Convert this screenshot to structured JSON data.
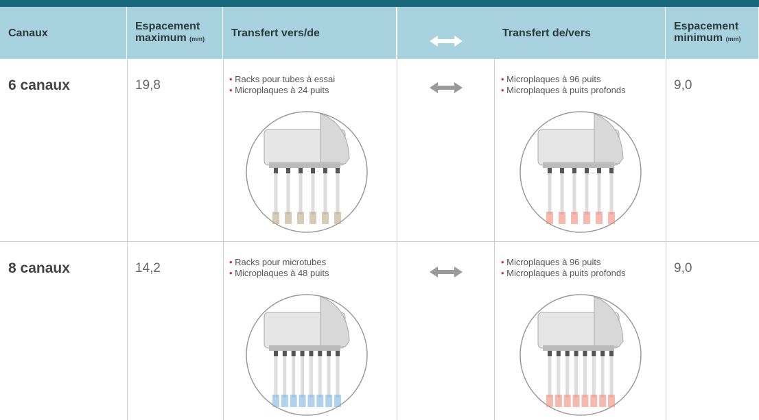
{
  "table": {
    "header": [
      {
        "label": "Canaux"
      },
      {
        "label": "Espacement maximum",
        "unit": "(mm)"
      },
      {
        "label": "Transfert vers/de"
      },
      {
        "label": "Transfert de/vers"
      },
      {
        "label": "Espacement minimum",
        "unit": "(mm)"
      }
    ],
    "rows": [
      {
        "channels": "6 canaux",
        "max": "19,8",
        "from": [
          "Racks pour tubes à essai",
          "Microplaques à 24 puits"
        ],
        "to": [
          "Microplaques à 96 puits",
          "Microplaques à puits profonds"
        ],
        "min": "9,0"
      },
      {
        "channels": "8 canaux",
        "max": "14,2",
        "from": [
          "Racks pour microtubes",
          "Microplaques à 48 puits"
        ],
        "to": [
          "Microplaques à 96 puits",
          "Microplaques à puits profonds"
        ],
        "min": "9,0"
      }
    ]
  }
}
